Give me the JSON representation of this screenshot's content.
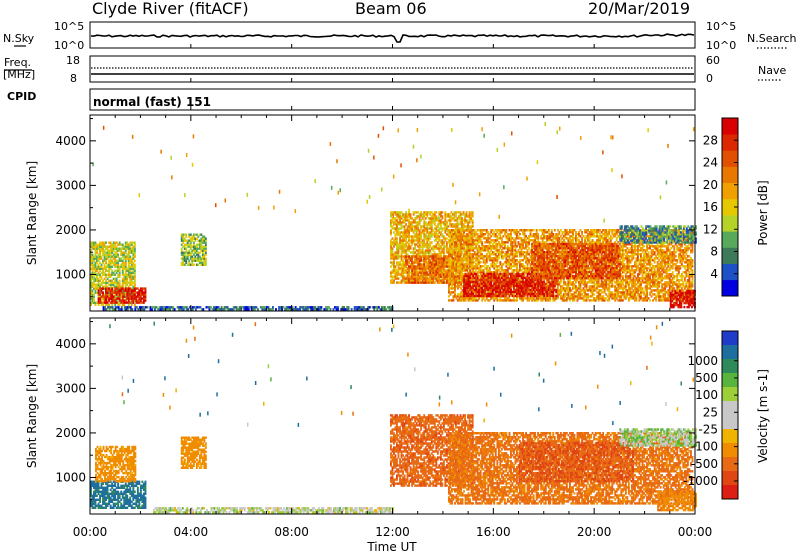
{
  "header": {
    "station": "Clyde River (fitACF)",
    "beam": "Beam 06",
    "date": "20/Mar/2019"
  },
  "status_panels": {
    "nsky": {
      "label": "N.Sky",
      "ticks": [
        "10^5",
        "10^0"
      ],
      "right_label": "N.Search",
      "right_ticks": [
        "10^5",
        "10^0"
      ]
    },
    "freq": {
      "label_top": "Freq.",
      "label_unit": "[MHz]",
      "ticks": [
        "18",
        "8"
      ],
      "right_label": "Nave",
      "right_ticks": [
        "60",
        "0"
      ]
    },
    "cpid": {
      "label": "CPID",
      "value": "normal (fast) 151"
    }
  },
  "colorbars": {
    "power": {
      "title": "Power [dB]",
      "ticks": [
        "28",
        "24",
        "20",
        "16",
        "12",
        "8",
        "4"
      ],
      "colors": [
        "#0000e0",
        "#1e50c8",
        "#3c7a5a",
        "#58aa5a",
        "#b4d228",
        "#e6c800",
        "#f0a000",
        "#e87800",
        "#e05000",
        "#dc2800",
        "#d80000"
      ]
    },
    "velocity": {
      "title": "Velocity [m s-1]",
      "ticks": [
        "1000",
        "500",
        "100",
        "25",
        "-25",
        "-100",
        "-500",
        "-1000"
      ],
      "colors": [
        "#1e3cc8",
        "#1e6e9e",
        "#2e8a5a",
        "#58b43c",
        "#9ccf3a",
        "#c8c8c8",
        "#c8c8c8",
        "#f0b400",
        "#f08c00",
        "#e86a14",
        "#e04614",
        "#dc1e14"
      ]
    }
  },
  "chart_data": [
    {
      "type": "heatmap",
      "title": "Beam 06",
      "quantity": "Power",
      "xlabel": "Time UT",
      "ylabel": "Slant Range [km]",
      "xticks": [
        "00:00",
        "04:00",
        "08:00",
        "12:00",
        "16:00",
        "20:00",
        "00:00"
      ],
      "xlim_hours": [
        0,
        24
      ],
      "yticks": [
        1000,
        2000,
        3000,
        4000
      ],
      "ylim": [
        180,
        4580
      ],
      "colorbar_range": [
        0,
        32
      ],
      "patches": [
        {
          "t": [
            0.0,
            1.8
          ],
          "r": [
            300,
            1700
          ],
          "level": 14
        },
        {
          "t": [
            0.3,
            2.2
          ],
          "r": [
            350,
            700
          ],
          "level": 29
        },
        {
          "t": [
            3.6,
            4.6
          ],
          "r": [
            1200,
            1900
          ],
          "level": 12
        },
        {
          "t": [
            0.5,
            12.0
          ],
          "r": [
            200,
            260
          ],
          "level": 6
        },
        {
          "t": [
            11.9,
            15.2
          ],
          "r": [
            800,
            2400
          ],
          "level": 18
        },
        {
          "t": [
            12.5,
            14.5
          ],
          "r": [
            800,
            1400
          ],
          "level": 23
        },
        {
          "t": [
            14.2,
            23.9
          ],
          "r": [
            400,
            2000
          ],
          "level": 20
        },
        {
          "t": [
            14.8,
            18.5
          ],
          "r": [
            500,
            1000
          ],
          "level": 29
        },
        {
          "t": [
            17.5,
            21.0
          ],
          "r": [
            900,
            1700
          ],
          "level": 25
        },
        {
          "t": [
            23.0,
            24.0
          ],
          "r": [
            250,
            650
          ],
          "level": 30
        },
        {
          "t": [
            21.0,
            24.0
          ],
          "r": [
            1700,
            2100
          ],
          "level": 8
        }
      ]
    },
    {
      "type": "heatmap",
      "quantity": "Velocity",
      "xlabel": "Time UT",
      "ylabel": "Slant Range [km]",
      "xticks": [
        "00:00",
        "04:00",
        "08:00",
        "12:00",
        "16:00",
        "20:00",
        "00:00"
      ],
      "xlim_hours": [
        0,
        24
      ],
      "yticks": [
        1000,
        2000,
        3000,
        4000
      ],
      "ylim": [
        180,
        4580
      ],
      "colorbar_range": [
        -1000,
        1000
      ],
      "patches": [
        {
          "t": [
            0.0,
            2.2
          ],
          "r": [
            300,
            900
          ],
          "v": 120
        },
        {
          "t": [
            0.2,
            1.8
          ],
          "r": [
            900,
            1700
          ],
          "v": -150
        },
        {
          "t": [
            3.6,
            4.6
          ],
          "r": [
            1200,
            1900
          ],
          "v": -150
        },
        {
          "t": [
            2.5,
            12.0
          ],
          "r": [
            200,
            300
          ],
          "v": 0
        },
        {
          "t": [
            11.9,
            15.2
          ],
          "r": [
            800,
            2400
          ],
          "v": -400
        },
        {
          "t": [
            14.2,
            23.9
          ],
          "r": [
            400,
            2000
          ],
          "v": -300
        },
        {
          "t": [
            17.0,
            21.5
          ],
          "r": [
            900,
            1800
          ],
          "v": -500
        },
        {
          "t": [
            21.0,
            24.0
          ],
          "r": [
            1700,
            2100
          ],
          "v": 10
        },
        {
          "t": [
            22.5,
            24.0
          ],
          "r": [
            250,
            700
          ],
          "v": -200
        }
      ]
    }
  ]
}
